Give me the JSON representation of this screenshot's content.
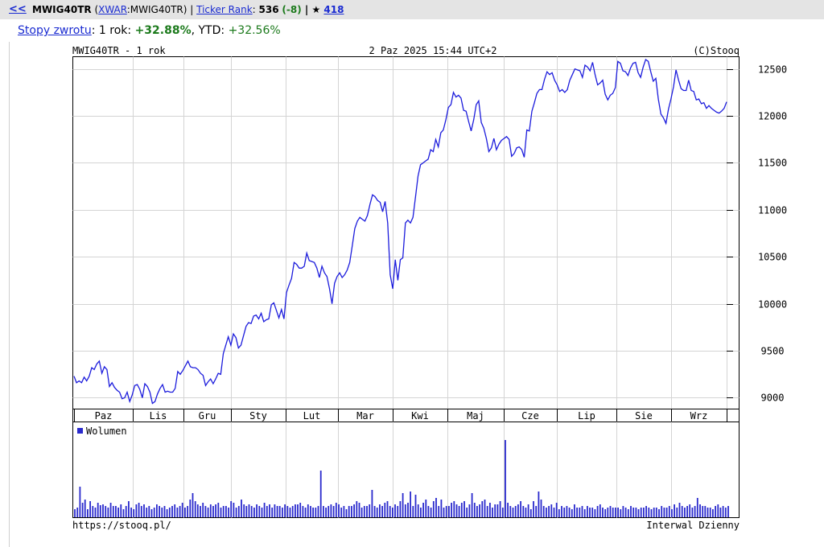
{
  "header": {
    "back_link": "<<",
    "ticker": "MWIG40TR",
    "open_paren": " (",
    "exchange_link": "XWAR",
    "full_symbol": ":MWIG40TR) | ",
    "ticker_rank_link": "Ticker Rank",
    "rank_sep": ": ",
    "rank_value": "536",
    "rank_change": "(-8)",
    "star_sep": " | ★ ",
    "stars_link": "418"
  },
  "returns": {
    "label_link": "Stopy zwrotu",
    "one_year_label": ": 1 rok: ",
    "one_year_value": "+32.88%",
    "ytd_label": ", YTD: ",
    "ytd_value": "+32.56%"
  },
  "chart_top": {
    "left": "MWIG40TR - 1 rok",
    "center": "2 Paz 2025 15:44 UTC+2",
    "right": "(C)Stooq"
  },
  "chart_bottom": {
    "left": "https://stooq.pl/",
    "right": "Interwal Dzienny"
  },
  "colors": {
    "line": "#1c1cdc",
    "volume": "#2a2acd",
    "grid": "#d4d4d4",
    "link": "#1a2bd1",
    "gain": "#1c7a1c"
  },
  "chart_data": {
    "type": "line",
    "title": "MWIG40TR - 1 rok",
    "x_tick_labels": [
      "Paz",
      "Lis",
      "Gru",
      "Sty",
      "Lut",
      "Mar",
      "Kwi",
      "Maj",
      "Cze",
      "Lip",
      "Sie",
      "Wrz"
    ],
    "y_tick_labels": [
      "9000",
      "9500",
      "10000",
      "10500",
      "11000",
      "11500",
      "12000",
      "12500"
    ],
    "y_ticks": [
      9000,
      9500,
      10000,
      10500,
      11000,
      11500,
      12000,
      12500
    ],
    "ylim": [
      8880,
      12630
    ],
    "grid": true,
    "values": [
      9230,
      9160,
      9180,
      9160,
      9220,
      9180,
      9230,
      9320,
      9300,
      9360,
      9390,
      9260,
      9330,
      9300,
      9120,
      9160,
      9110,
      9080,
      9060,
      8990,
      9000,
      9060,
      8960,
      9030,
      9130,
      9140,
      9090,
      9000,
      9150,
      9120,
      9060,
      8940,
      8960,
      9040,
      9100,
      9140,
      9060,
      9070,
      9060,
      9060,
      9100,
      9280,
      9250,
      9290,
      9340,
      9390,
      9330,
      9320,
      9320,
      9300,
      9260,
      9240,
      9130,
      9170,
      9200,
      9150,
      9200,
      9260,
      9250,
      9470,
      9560,
      9650,
      9560,
      9680,
      9640,
      9530,
      9560,
      9660,
      9760,
      9800,
      9790,
      9870,
      9880,
      9840,
      9900,
      9810,
      9830,
      9840,
      9990,
      10010,
      9930,
      9850,
      9940,
      9840,
      10120,
      10200,
      10270,
      10440,
      10420,
      10380,
      10380,
      10400,
      10540,
      10460,
      10450,
      10440,
      10380,
      10280,
      10400,
      10330,
      10290,
      10160,
      10000,
      10220,
      10290,
      10330,
      10280,
      10310,
      10360,
      10440,
      10620,
      10800,
      10880,
      10920,
      10900,
      10880,
      10940,
      11060,
      11160,
      11140,
      11100,
      11080,
      10980,
      11090,
      10860,
      10310,
      10160,
      10470,
      10250,
      10470,
      10490,
      10860,
      10890,
      10860,
      10920,
      11140,
      11360,
      11480,
      11500,
      11520,
      11540,
      11640,
      11620,
      11750,
      11670,
      11820,
      11850,
      11960,
      12090,
      12120,
      12250,
      12200,
      12220,
      12190,
      12060,
      12050,
      11940,
      11840,
      11960,
      12120,
      12160,
      11930,
      11870,
      11760,
      11620,
      11660,
      11760,
      11640,
      11700,
      11740,
      11760,
      11780,
      11750,
      11570,
      11600,
      11660,
      11670,
      11640,
      11560,
      11850,
      11840,
      12050,
      12140,
      12240,
      12280,
      12280,
      12390,
      12470,
      12440,
      12460,
      12380,
      12330,
      12260,
      12280,
      12250,
      12280,
      12380,
      12440,
      12500,
      12490,
      12480,
      12410,
      12540,
      12520,
      12480,
      12570,
      12440,
      12330,
      12350,
      12380,
      12230,
      12170,
      12220,
      12240,
      12300,
      12580,
      12560,
      12480,
      12470,
      12430,
      12510,
      12560,
      12570,
      12460,
      12410,
      12520,
      12600,
      12580,
      12470,
      12370,
      12400,
      12180,
      12020,
      11980,
      11920,
      12070,
      12180,
      12310,
      12490,
      12380,
      12290,
      12270,
      12270,
      12380,
      12270,
      12260,
      12170,
      12180,
      12130,
      12140,
      12080,
      12110,
      12080,
      12060,
      12040,
      12030,
      12050,
      12080,
      12150
    ],
    "volume": {
      "label": "Wolumen",
      "values": [
        10,
        12,
        38,
        18,
        22,
        10,
        20,
        14,
        12,
        18,
        15,
        16,
        14,
        12,
        18,
        14,
        14,
        12,
        16,
        10,
        14,
        20,
        12,
        10,
        16,
        18,
        14,
        16,
        12,
        14,
        10,
        12,
        16,
        14,
        12,
        14,
        10,
        12,
        14,
        16,
        12,
        14,
        18,
        12,
        14,
        22,
        30,
        20,
        16,
        14,
        18,
        14,
        12,
        16,
        14,
        16,
        18,
        12,
        14,
        14,
        12,
        20,
        18,
        12,
        14,
        22,
        16,
        14,
        16,
        14,
        12,
        16,
        14,
        12,
        18,
        14,
        16,
        12,
        16,
        14,
        14,
        12,
        16,
        14,
        12,
        14,
        16,
        16,
        18,
        14,
        12,
        16,
        14,
        12,
        12,
        14,
        58,
        14,
        12,
        14,
        16,
        14,
        18,
        16,
        12,
        14,
        10,
        14,
        14,
        16,
        20,
        18,
        12,
        14,
        14,
        16,
        34,
        14,
        12,
        16,
        14,
        18,
        20,
        14,
        12,
        16,
        14,
        20,
        30,
        16,
        18,
        32,
        14,
        28,
        16,
        12,
        18,
        22,
        14,
        12,
        20,
        24,
        14,
        22,
        12,
        14,
        14,
        18,
        20,
        16,
        14,
        18,
        20,
        12,
        16,
        30,
        18,
        14,
        16,
        20,
        22,
        14,
        18,
        12,
        16,
        16,
        20,
        12,
        96,
        18,
        14,
        12,
        14,
        16,
        20,
        14,
        12,
        16,
        10,
        20,
        14,
        32,
        22,
        14,
        12,
        14,
        16,
        12,
        18,
        10,
        14,
        12,
        14,
        12,
        10,
        16,
        12,
        12,
        14,
        10,
        14,
        12,
        12,
        10,
        14,
        16,
        12,
        10,
        12,
        14,
        12,
        12,
        12,
        10,
        14,
        12,
        10,
        14,
        12,
        12,
        10,
        12,
        12,
        14,
        12,
        10,
        12,
        12,
        10,
        14,
        12,
        12,
        14,
        10,
        16,
        12,
        18,
        14,
        12,
        14,
        16,
        12,
        14,
        24,
        16,
        14,
        14,
        12,
        12,
        10,
        14,
        16,
        12,
        14,
        12,
        14
      ]
    }
  }
}
